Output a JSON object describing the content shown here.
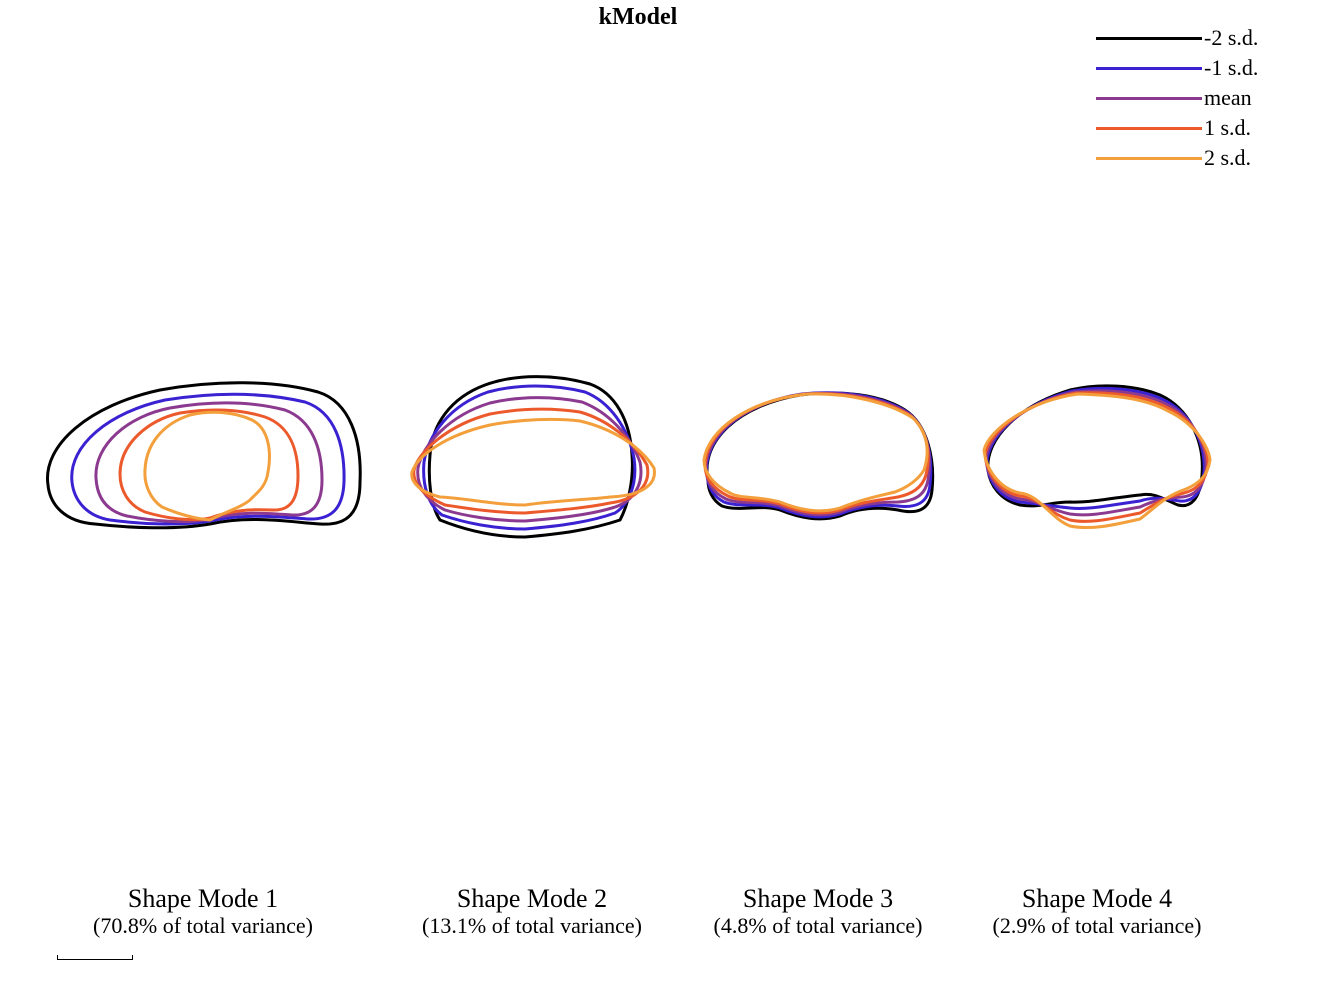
{
  "title": "kModel",
  "legend": {
    "items": [
      {
        "label": "-2 s.d.",
        "color": "#000000"
      },
      {
        "label": "-1 s.d.",
        "color": "#3a22d2"
      },
      {
        "label": "mean",
        "color": "#8b3a8f"
      },
      {
        "label": "1 s.d.",
        "color": "#ec5a2c"
      },
      {
        "label": "2 s.d.",
        "color": "#f3a03c"
      }
    ]
  },
  "modes": [
    {
      "title": "Shape Mode 1",
      "subtitle": "(70.8% of total variance)"
    },
    {
      "title": "Shape Mode 2",
      "subtitle": "(13.1% of total variance)"
    },
    {
      "title": "Shape Mode 3",
      "subtitle": "(4.8% of total variance)"
    },
    {
      "title": "Shape Mode 4",
      "subtitle": "(2.9% of total variance)"
    }
  ]
}
